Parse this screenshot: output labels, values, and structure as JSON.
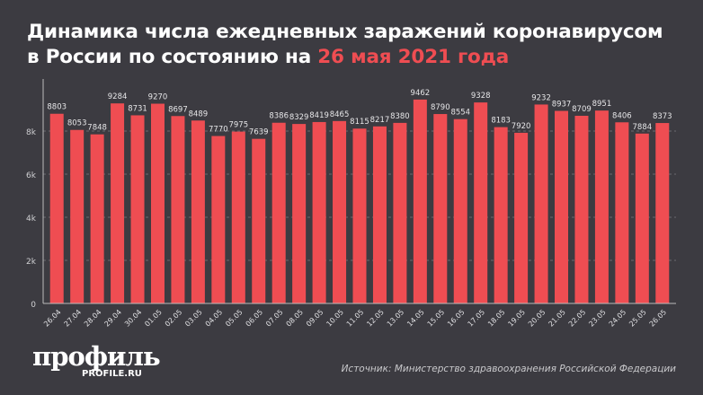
{
  "title": {
    "line1": "Динамика числа ежедневных заражений коронавирусом",
    "line2_prefix": "в России по состоянию на ",
    "line2_highlight": "26 мая 2021 года"
  },
  "logo": {
    "text": "профиль",
    "url": "PROFILE.RU"
  },
  "source": "Источник: Министерство здравоохранения Российской Федерации",
  "colors": {
    "background": "#3c3b41",
    "bar": "#ef4d52",
    "highlight": "#ef4d52"
  },
  "chart_data": {
    "type": "bar",
    "categories": [
      "26.04",
      "27.04",
      "28.04",
      "29.04",
      "30.04",
      "01.05",
      "02.05",
      "03.05",
      "04.05",
      "05.05",
      "06.05",
      "07.05",
      "08.05",
      "09.05",
      "10.05",
      "11.05",
      "12.05",
      "13.05",
      "14.05",
      "15.05",
      "16.05",
      "17.05",
      "18.05",
      "19.05",
      "20.05",
      "21.05",
      "22.05",
      "23.05",
      "24.05",
      "25.05",
      "26.05"
    ],
    "values": [
      8803,
      8053,
      7848,
      9284,
      8731,
      9270,
      8697,
      8489,
      7770,
      7975,
      7639,
      8386,
      8329,
      8419,
      8465,
      8115,
      8217,
      8380,
      9462,
      8790,
      8554,
      9328,
      8183,
      7920,
      9232,
      8937,
      8709,
      8951,
      8406,
      7884,
      8373
    ],
    "yticks": [
      0,
      2000,
      4000,
      6000,
      8000
    ],
    "ytick_labels": [
      "0",
      "2k",
      "4k",
      "6k",
      "8k"
    ],
    "ylim": [
      0,
      10000
    ],
    "grid": true,
    "xlabel": "",
    "ylabel": ""
  }
}
